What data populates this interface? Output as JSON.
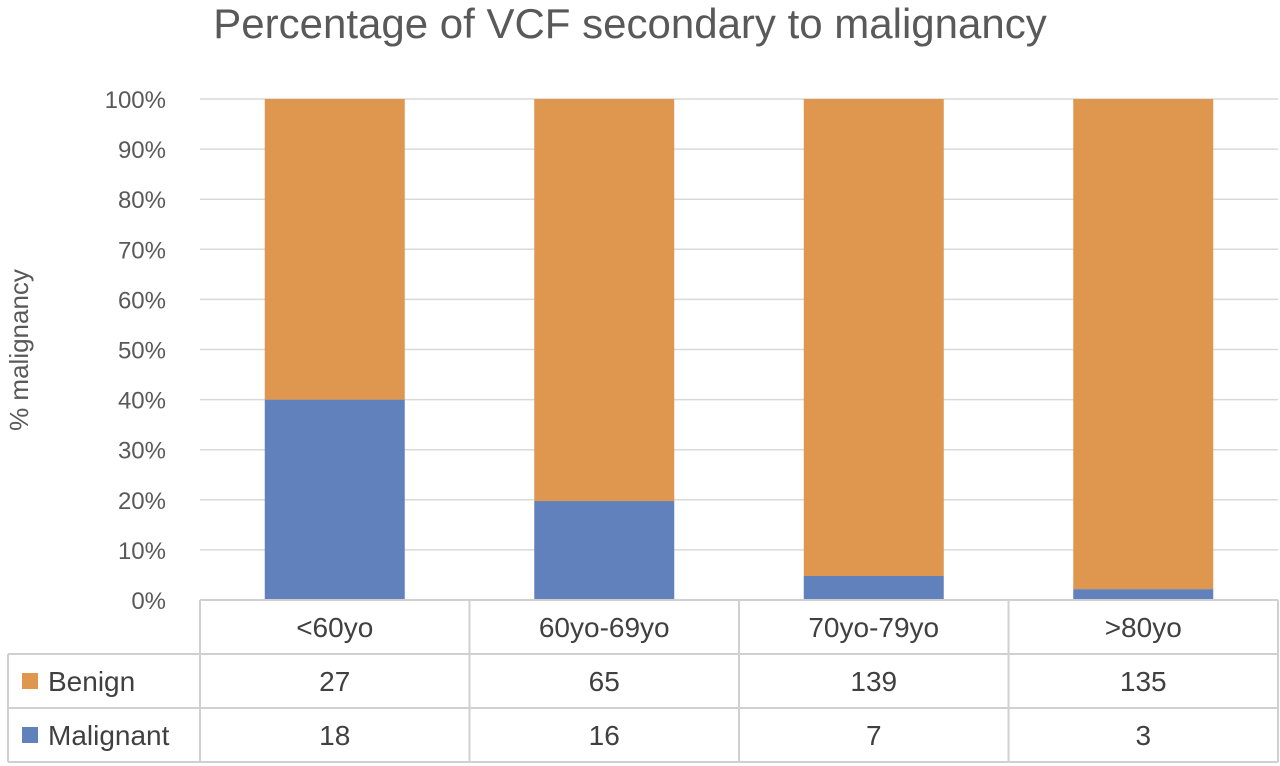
{
  "chart_data": {
    "type": "bar",
    "stacked": "percent",
    "title": "Percentage of VCF secondary to malignancy",
    "xlabel": "",
    "ylabel": "% malignancy",
    "ylim": [
      0,
      100
    ],
    "yticks": [
      "0%",
      "10%",
      "20%",
      "30%",
      "40%",
      "50%",
      "60%",
      "70%",
      "80%",
      "90%",
      "100%"
    ],
    "categories": [
      "<60yo",
      "60yo-69yo",
      "70yo-79yo",
      ">80yo"
    ],
    "series": [
      {
        "name": "Malignant",
        "values": [
          18,
          16,
          7,
          3
        ],
        "color": "#6081bb"
      },
      {
        "name": "Benign",
        "values": [
          27,
          65,
          139,
          135
        ],
        "color": "#df964e"
      }
    ],
    "data_table": true,
    "grid": true,
    "legend": "data-table"
  }
}
